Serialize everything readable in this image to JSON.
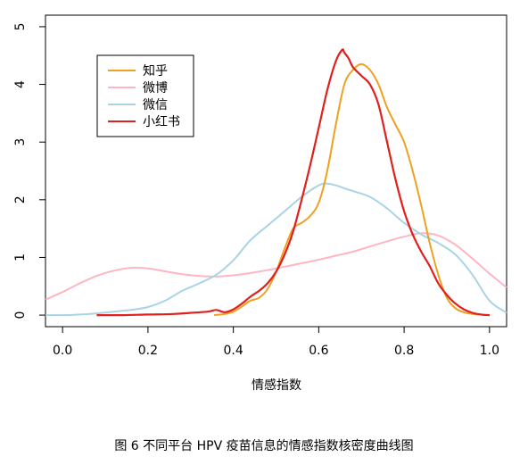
{
  "figure_caption": "图 6  不同平台 HPV 疫苗信息的情感指数核密度曲线图",
  "chart_data": {
    "type": "line",
    "title": "",
    "xlabel": "情感指数",
    "ylabel": "",
    "xlim": [
      -0.04,
      1.04
    ],
    "ylim": [
      -0.2,
      5.2
    ],
    "xticks": [
      "0.0",
      "0.2",
      "0.4",
      "0.6",
      "0.8",
      "1.0"
    ],
    "yticks": [
      "0",
      "1",
      "2",
      "3",
      "4",
      "5"
    ],
    "grid": false,
    "legend_position": "top-left",
    "series": [
      {
        "name": "知乎",
        "color": "#F0A020",
        "x": [
          0.355,
          0.38,
          0.4,
          0.42,
          0.44,
          0.46,
          0.48,
          0.5,
          0.52,
          0.54,
          0.56,
          0.58,
          0.6,
          0.62,
          0.64,
          0.66,
          0.68,
          0.7,
          0.72,
          0.74,
          0.76,
          0.78,
          0.8,
          0.82,
          0.84,
          0.86,
          0.88,
          0.9,
          0.92,
          0.94,
          0.96,
          0.98,
          1.0
        ],
        "y": [
          0.0,
          0.02,
          0.06,
          0.15,
          0.25,
          0.3,
          0.45,
          0.75,
          1.15,
          1.5,
          1.6,
          1.72,
          1.95,
          2.5,
          3.3,
          4.0,
          4.25,
          4.35,
          4.25,
          4.0,
          3.6,
          3.3,
          3.0,
          2.5,
          1.9,
          1.25,
          0.7,
          0.3,
          0.12,
          0.05,
          0.02,
          0.01,
          0.0
        ]
      },
      {
        "name": "微博",
        "color": "#FFB6C1",
        "x": [
          -0.04,
          0.0,
          0.04,
          0.08,
          0.12,
          0.16,
          0.2,
          0.24,
          0.28,
          0.32,
          0.36,
          0.4,
          0.44,
          0.48,
          0.52,
          0.56,
          0.6,
          0.64,
          0.68,
          0.72,
          0.76,
          0.8,
          0.84,
          0.88,
          0.92,
          0.96,
          1.0,
          1.04
        ],
        "y": [
          0.27,
          0.4,
          0.55,
          0.68,
          0.77,
          0.82,
          0.81,
          0.76,
          0.71,
          0.68,
          0.67,
          0.69,
          0.73,
          0.78,
          0.84,
          0.9,
          0.96,
          1.03,
          1.1,
          1.19,
          1.28,
          1.36,
          1.42,
          1.38,
          1.22,
          0.98,
          0.72,
          0.48
        ]
      },
      {
        "name": "微信",
        "color": "#A8D4E6",
        "x": [
          -0.04,
          0.0,
          0.04,
          0.08,
          0.12,
          0.16,
          0.2,
          0.24,
          0.28,
          0.32,
          0.36,
          0.4,
          0.44,
          0.48,
          0.52,
          0.56,
          0.6,
          0.62,
          0.64,
          0.66,
          0.68,
          0.72,
          0.76,
          0.8,
          0.84,
          0.88,
          0.92,
          0.96,
          1.0,
          1.04
        ],
        "y": [
          0.0,
          0.0,
          0.01,
          0.03,
          0.06,
          0.09,
          0.14,
          0.25,
          0.42,
          0.55,
          0.7,
          0.95,
          1.3,
          1.55,
          1.8,
          2.05,
          2.25,
          2.28,
          2.25,
          2.2,
          2.15,
          2.05,
          1.85,
          1.6,
          1.4,
          1.25,
          1.05,
          0.7,
          0.25,
          0.04
        ]
      },
      {
        "name": "小红书",
        "color": "#E0201E",
        "x": [
          0.08,
          0.14,
          0.2,
          0.26,
          0.3,
          0.34,
          0.36,
          0.38,
          0.4,
          0.42,
          0.44,
          0.46,
          0.48,
          0.5,
          0.52,
          0.54,
          0.56,
          0.58,
          0.6,
          0.62,
          0.64,
          0.655,
          0.66,
          0.67,
          0.68,
          0.7,
          0.72,
          0.74,
          0.76,
          0.78,
          0.8,
          0.82,
          0.84,
          0.86,
          0.88,
          0.9,
          0.92,
          0.94,
          0.96,
          0.98,
          1.0
        ],
        "y": [
          0.0,
          0.0,
          0.01,
          0.02,
          0.04,
          0.06,
          0.09,
          0.05,
          0.1,
          0.2,
          0.32,
          0.42,
          0.55,
          0.75,
          1.05,
          1.45,
          2.0,
          2.6,
          3.25,
          3.9,
          4.4,
          4.6,
          4.55,
          4.45,
          4.3,
          4.15,
          4.0,
          3.65,
          3.0,
          2.35,
          1.8,
          1.4,
          1.1,
          0.85,
          0.55,
          0.35,
          0.2,
          0.1,
          0.04,
          0.01,
          0.0
        ]
      }
    ]
  }
}
